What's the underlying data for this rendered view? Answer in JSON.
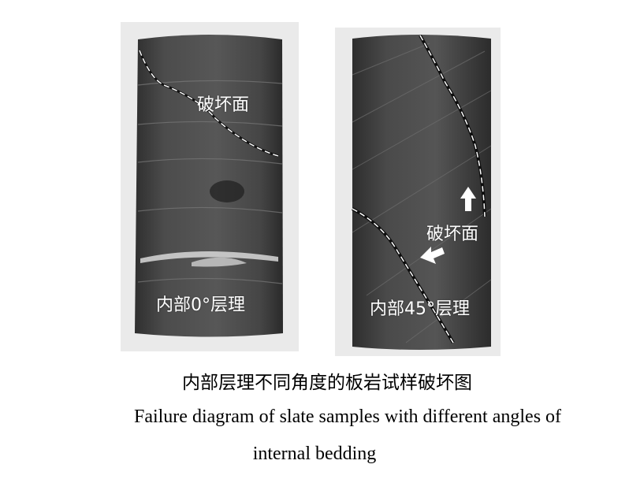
{
  "figure": {
    "left_sample": {
      "failure_label": "破坏面",
      "bedding_label": "内部0°层理"
    },
    "right_sample": {
      "failure_label": "破坏面",
      "bedding_label": "内部45°层理"
    },
    "caption_cn": "内部层理不同角度的板岩试样破坏图",
    "caption_en_line1": "Failure diagram of slate samples with different angles of",
    "caption_en_line2": "internal bedding"
  }
}
